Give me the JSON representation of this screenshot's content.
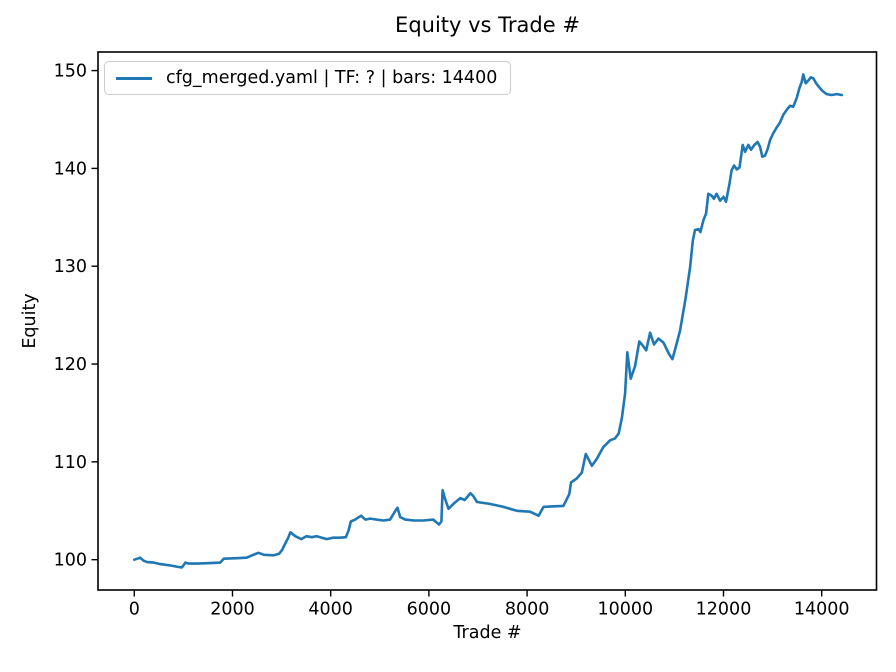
{
  "colors": {
    "line": "#1f77b4",
    "axis": "#000000",
    "legend_border": "#cccccc",
    "background": "#ffffff"
  },
  "chart_data": {
    "type": "line",
    "title": "Equity vs Trade #",
    "xlabel": "Trade #",
    "ylabel": "Equity",
    "grid": false,
    "legend": {
      "position": "upper left",
      "entries": [
        {
          "label": "cfg_merged.yaml | TF: ? | bars: 14400",
          "color": "#1f77b4"
        }
      ]
    },
    "x_ticks": [
      0,
      2000,
      4000,
      6000,
      8000,
      10000,
      12000,
      14000
    ],
    "y_ticks": [
      100,
      110,
      120,
      130,
      140,
      150
    ],
    "xlim": [
      -739,
      15116
    ],
    "ylim": [
      96.9,
      151.9
    ],
    "series": [
      {
        "name": "cfg_merged.yaml | TF: ? | bars: 14400",
        "color": "#1f77b4",
        "points": [
          [
            0,
            100
          ],
          [
            120,
            100.2
          ],
          [
            190,
            99.9
          ],
          [
            260,
            99.75
          ],
          [
            400,
            99.7
          ],
          [
            530,
            99.55
          ],
          [
            740,
            99.4
          ],
          [
            900,
            99.25
          ],
          [
            970,
            99.2
          ],
          [
            1040,
            99.7
          ],
          [
            1110,
            99.6
          ],
          [
            1280,
            99.6
          ],
          [
            1550,
            99.65
          ],
          [
            1750,
            99.7
          ],
          [
            1820,
            100.1
          ],
          [
            2090,
            100.15
          ],
          [
            2290,
            100.2
          ],
          [
            2400,
            100.45
          ],
          [
            2530,
            100.7
          ],
          [
            2640,
            100.5
          ],
          [
            2840,
            100.45
          ],
          [
            2950,
            100.6
          ],
          [
            3010,
            101
          ],
          [
            3070,
            101.6
          ],
          [
            3130,
            102.2
          ],
          [
            3180,
            102.8
          ],
          [
            3280,
            102.4
          ],
          [
            3400,
            102.1
          ],
          [
            3510,
            102.4
          ],
          [
            3615,
            102.3
          ],
          [
            3715,
            102.4
          ],
          [
            3820,
            102.25
          ],
          [
            3920,
            102.1
          ],
          [
            4050,
            102.25
          ],
          [
            4190,
            102.25
          ],
          [
            4310,
            102.3
          ],
          [
            4365,
            103
          ],
          [
            4410,
            103.9
          ],
          [
            4500,
            104.1
          ],
          [
            4620,
            104.5
          ],
          [
            4705,
            104.1
          ],
          [
            4805,
            104.2
          ],
          [
            4940,
            104.1
          ],
          [
            5075,
            104
          ],
          [
            5210,
            104.1
          ],
          [
            5330,
            105.1
          ],
          [
            5360,
            105.3
          ],
          [
            5415,
            104.35
          ],
          [
            5520,
            104.1
          ],
          [
            5690,
            104
          ],
          [
            5890,
            104
          ],
          [
            6090,
            104.1
          ],
          [
            6205,
            103.6
          ],
          [
            6255,
            103.9
          ],
          [
            6280,
            107.1
          ],
          [
            6330,
            106.2
          ],
          [
            6400,
            105.2
          ],
          [
            6500,
            105.7
          ],
          [
            6640,
            106.3
          ],
          [
            6730,
            106.1
          ],
          [
            6845,
            106.8
          ],
          [
            6905,
            106.5
          ],
          [
            6980,
            105.9
          ],
          [
            7240,
            105.7
          ],
          [
            7520,
            105.4
          ],
          [
            7790,
            105
          ],
          [
            8060,
            104.9
          ],
          [
            8235,
            104.5
          ],
          [
            8335,
            105.4
          ],
          [
            8500,
            105.45
          ],
          [
            8740,
            105.5
          ],
          [
            8860,
            106.7
          ],
          [
            8895,
            107.9
          ],
          [
            9010,
            108.3
          ],
          [
            9115,
            108.9
          ],
          [
            9195,
            110.8
          ],
          [
            9320,
            109.6
          ],
          [
            9420,
            110.3
          ],
          [
            9550,
            111.5
          ],
          [
            9690,
            112.2
          ],
          [
            9790,
            112.4
          ],
          [
            9865,
            112.9
          ],
          [
            9930,
            114.5
          ],
          [
            9995,
            117
          ],
          [
            10040,
            121.2
          ],
          [
            10110,
            118.5
          ],
          [
            10200,
            119.8
          ],
          [
            10285,
            122.3
          ],
          [
            10355,
            121.9
          ],
          [
            10425,
            121.4
          ],
          [
            10505,
            123.2
          ],
          [
            10585,
            122
          ],
          [
            10675,
            122.6
          ],
          [
            10775,
            122.2
          ],
          [
            10895,
            121
          ],
          [
            10960,
            120.5
          ],
          [
            11020,
            121.6
          ],
          [
            11115,
            123.4
          ],
          [
            11225,
            126.6
          ],
          [
            11320,
            129.9
          ],
          [
            11375,
            132.6
          ],
          [
            11420,
            133.7
          ],
          [
            11490,
            133.8
          ],
          [
            11530,
            133.5
          ],
          [
            11590,
            134.7
          ],
          [
            11645,
            135.4
          ],
          [
            11690,
            137.4
          ],
          [
            11760,
            137.2
          ],
          [
            11805,
            136.9
          ],
          [
            11860,
            137.4
          ],
          [
            11930,
            136.7
          ],
          [
            12000,
            137.1
          ],
          [
            12050,
            136.6
          ],
          [
            12120,
            138.4
          ],
          [
            12165,
            139.8
          ],
          [
            12215,
            140.3
          ],
          [
            12270,
            139.9
          ],
          [
            12325,
            140.1
          ],
          [
            12390,
            142.4
          ],
          [
            12440,
            141.7
          ],
          [
            12505,
            142.4
          ],
          [
            12560,
            141.9
          ],
          [
            12630,
            142.4
          ],
          [
            12695,
            142.7
          ],
          [
            12745,
            142.2
          ],
          [
            12790,
            141.2
          ],
          [
            12845,
            141.3
          ],
          [
            12900,
            142
          ],
          [
            12950,
            142.9
          ],
          [
            13015,
            143.6
          ],
          [
            13085,
            144.2
          ],
          [
            13150,
            144.7
          ],
          [
            13220,
            145.5
          ],
          [
            13290,
            146
          ],
          [
            13355,
            146.4
          ],
          [
            13420,
            146.3
          ],
          [
            13490,
            147.2
          ],
          [
            13545,
            148.2
          ],
          [
            13590,
            148.8
          ],
          [
            13625,
            149.6
          ],
          [
            13675,
            148.7
          ],
          [
            13730,
            149
          ],
          [
            13775,
            149.3
          ],
          [
            13830,
            149.2
          ],
          [
            13885,
            148.7
          ],
          [
            13950,
            148.3
          ],
          [
            14020,
            147.9
          ],
          [
            14100,
            147.6
          ],
          [
            14200,
            147.5
          ],
          [
            14310,
            147.6
          ],
          [
            14410,
            147.5
          ]
        ]
      }
    ]
  }
}
